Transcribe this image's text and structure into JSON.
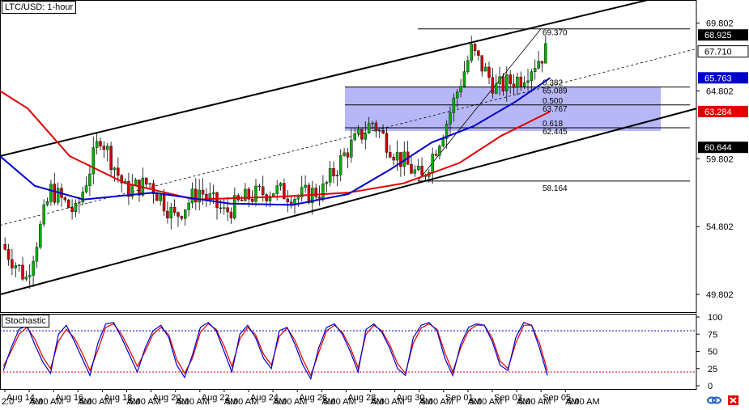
{
  "window": {
    "title": "LTC/USD: 1-hour",
    "indicator_title": "Stochastic"
  },
  "colors": {
    "bull_candle": "#00b000",
    "bear_candle": "#d00000",
    "sma_fast": "#0000cc",
    "sma_slow": "#e00000",
    "fib_zone": "#9f9ff5",
    "stoch_k": "#0000cc",
    "stoch_d": "#e00000",
    "badge_last": "#000000",
    "badge_fast": "#0000cc",
    "badge_slow": "#e00000"
  },
  "icons": {
    "link": "link-icon",
    "close": "close-icon"
  },
  "chart_data": {
    "type": "candlestick",
    "title": "LTC/USD: 1-hour",
    "ylim": [
      48.5,
      71.5
    ],
    "y_ticks": [
      69.802,
      64.802,
      59.802,
      54.802,
      49.802
    ],
    "price_badges": [
      {
        "value": 68.925,
        "kind": "last"
      },
      {
        "value": 67.71,
        "kind": "plain"
      },
      {
        "value": 65.763,
        "kind": "fast"
      },
      {
        "value": 63.284,
        "kind": "slow"
      },
      {
        "value": 60.644,
        "kind": "last"
      }
    ],
    "x_labels": [
      "Aug 14",
      "5:00 AM",
      "Aug 16",
      "5:00 AM",
      "Aug 18",
      "5:00 AM",
      "Aug 20",
      "5:00 AM",
      "Aug 22",
      "5:00 AM",
      "Aug 24",
      "5:00 AM",
      "Aug 26",
      "5:00 AM",
      "Aug 28",
      "5:00 AM",
      "Aug 30",
      "5:00 AM",
      "Sep 01",
      "5:00 AM",
      "Sep 03",
      "5:00 AM",
      "Sep 05",
      "5:00 AM"
    ],
    "x_edge_labels": [
      "2:0",
      "AM"
    ],
    "x_edge_labels_bottom": [
      "AM",
      "AM",
      "AM",
      "AM",
      "AM",
      "AM",
      "AM",
      "AM",
      "AM",
      "AM",
      "AM",
      "AM"
    ],
    "ohlc_daily_approx": [
      {
        "day": "Aug 14",
        "open": 53.5,
        "close": 51.0
      },
      {
        "day": "Aug 15",
        "open": 51.0,
        "close": 57.5
      },
      {
        "day": "Aug 16",
        "open": 57.5,
        "close": 55.8
      },
      {
        "day": "Aug 17",
        "open": 55.8,
        "close": 61.5
      },
      {
        "day": "Aug 18",
        "open": 61.5,
        "close": 57.5
      },
      {
        "day": "Aug 19",
        "open": 57.5,
        "close": 58.0
      },
      {
        "day": "Aug 20",
        "open": 58.0,
        "close": 55.5
      },
      {
        "day": "Aug 21",
        "open": 55.5,
        "close": 57.5
      },
      {
        "day": "Aug 22",
        "open": 57.5,
        "close": 55.8
      },
      {
        "day": "Aug 23",
        "open": 55.8,
        "close": 57.0
      },
      {
        "day": "Aug 24",
        "open": 57.0,
        "close": 57.5
      },
      {
        "day": "Aug 25",
        "open": 57.5,
        "close": 57.0
      },
      {
        "day": "Aug 26",
        "open": 57.0,
        "close": 57.5
      },
      {
        "day": "Aug 27",
        "open": 57.5,
        "close": 60.5
      },
      {
        "day": "Aug 28",
        "open": 60.5,
        "close": 62.5
      },
      {
        "day": "Aug 29",
        "open": 62.5,
        "close": 60.0
      },
      {
        "day": "Aug 30",
        "open": 60.0,
        "close": 58.3
      },
      {
        "day": "Aug 31",
        "open": 58.3,
        "close": 62.5
      },
      {
        "day": "Sep 01",
        "open": 62.5,
        "close": 67.8
      },
      {
        "day": "Sep 02",
        "open": 67.8,
        "close": 65.0
      },
      {
        "day": "Sep 03",
        "open": 65.0,
        "close": 65.8
      },
      {
        "day": "Sep 04",
        "open": 65.8,
        "close": 67.7
      }
    ],
    "sma_fast_points": [
      [
        0,
        60.0
      ],
      [
        0.05,
        57.8
      ],
      [
        0.12,
        56.8
      ],
      [
        0.22,
        57.3
      ],
      [
        0.33,
        56.5
      ],
      [
        0.42,
        56.4
      ],
      [
        0.5,
        57.2
      ],
      [
        0.56,
        59.0
      ],
      [
        0.62,
        61.0
      ],
      [
        0.68,
        62.2
      ],
      [
        0.74,
        64.0
      ],
      [
        0.79,
        65.763
      ]
    ],
    "sma_slow_points": [
      [
        0,
        64.8
      ],
      [
        0.04,
        63.5
      ],
      [
        0.1,
        60.0
      ],
      [
        0.18,
        58.0
      ],
      [
        0.28,
        56.8
      ],
      [
        0.4,
        57.0
      ],
      [
        0.5,
        57.3
      ],
      [
        0.58,
        58.0
      ],
      [
        0.66,
        59.5
      ],
      [
        0.72,
        61.5
      ],
      [
        0.79,
        63.284
      ]
    ],
    "channel": {
      "upper": [
        [
          0,
          60.0
        ],
        [
          0.93,
          71.5
        ]
      ],
      "lower": [
        [
          0,
          49.8
        ],
        [
          1.0,
          63.5
        ]
      ],
      "mid": [
        [
          0,
          54.9
        ],
        [
          1.0,
          67.9
        ]
      ]
    },
    "fib_levels": [
      {
        "ratio": "0.382",
        "value": "65.089",
        "y": 65.089
      },
      {
        "ratio": "0.500",
        "value": "63.767",
        "y": 63.767
      },
      {
        "ratio": "0.618",
        "value": "62.445",
        "y": 62.445
      }
    ],
    "fib_high": {
      "label": "69.370",
      "y": 69.37
    },
    "fib_low": {
      "label": "58.164",
      "y": 58.164
    },
    "stochastic": {
      "ylim": [
        0,
        100
      ],
      "y_ticks": [
        100,
        75,
        50,
        25,
        0
      ],
      "overbought": 80,
      "oversold": 20,
      "k_values": [
        22,
        55,
        82,
        88,
        60,
        35,
        18,
        75,
        88,
        65,
        40,
        15,
        62,
        90,
        92,
        70,
        45,
        20,
        55,
        80,
        88,
        70,
        30,
        12,
        45,
        85,
        92,
        80,
        50,
        20,
        75,
        88,
        70,
        40,
        25,
        80,
        85,
        60,
        30,
        10,
        55,
        85,
        90,
        75,
        50,
        20,
        82,
        90,
        78,
        55,
        25,
        15,
        70,
        88,
        92,
        80,
        40,
        15,
        60,
        85,
        90,
        88,
        65,
        30,
        22,
        70,
        92,
        88,
        55,
        15
      ],
      "d_values": [
        28,
        50,
        75,
        85,
        68,
        42,
        25,
        65,
        82,
        70,
        48,
        22,
        52,
        85,
        90,
        75,
        52,
        28,
        50,
        75,
        85,
        74,
        38,
        18,
        40,
        78,
        90,
        82,
        58,
        28,
        68,
        85,
        74,
        46,
        30,
        72,
        84,
        66,
        38,
        15,
        48,
        80,
        88,
        78,
        56,
        26,
        75,
        88,
        80,
        60,
        32,
        18,
        62,
        84,
        90,
        82,
        48,
        20,
        55,
        80,
        88,
        88,
        70,
        36,
        25,
        62,
        88,
        88,
        62,
        22
      ]
    }
  }
}
